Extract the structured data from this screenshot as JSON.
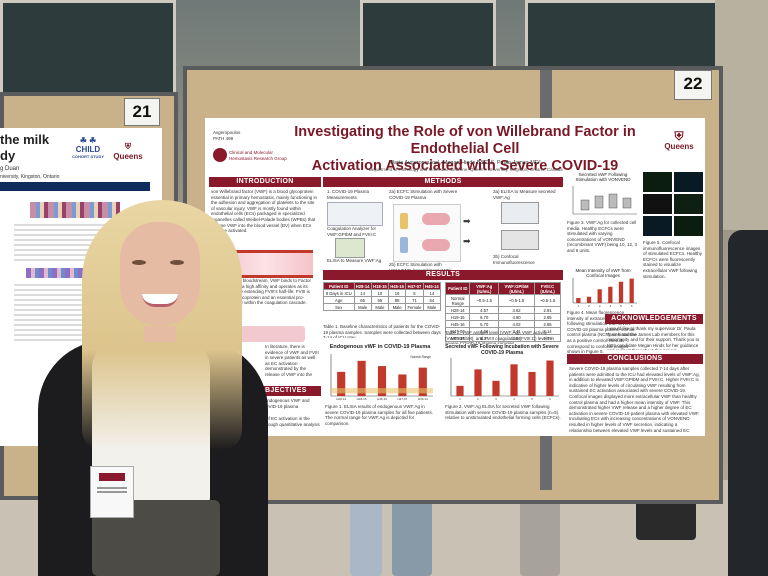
{
  "booth_numbers": {
    "left": "21",
    "right": "22"
  },
  "left_poster": {
    "fragments": [
      "the milk",
      "dy"
    ],
    "author_fragment": "g Duan",
    "affiliation_fragment": "niversity, Kingston, Ontario",
    "logo_child": "CHILD",
    "logo_child_sub": "COHORT STUDY",
    "logo_queens": "Queens"
  },
  "poster": {
    "tag_line1": "Avgeropoulos",
    "tag_line2": "PATH 499",
    "lab_name_1": "Clinical and Molecular",
    "lab_name_2": "Hemostasis Research Group",
    "title_line1": "Investigating the Role of von Willebrand Factor in Endothelial Cell",
    "title_line2": "Activation Associated with Severe COVID-19",
    "authors": "Maria Avgeropoulos¹, Megan Hinds BSCH², Paula James MD²",
    "affiliation": "¹Department of Pathology and Molecular Medicine, Queen's University, Kingston, Ontario, Canada",
    "queens_logo": "Queens",
    "sections": {
      "introduction": "INTRODUCTION",
      "methods": "METHODS",
      "results": "RESULTS",
      "objectives": "OBJECTIVES",
      "acknowledgements": "ACKNOWLEDGEMENTS",
      "conclusions": "CONCLUSIONS"
    },
    "intro_text": "von Willebrand factor (VWF) is a blood glycoprotein essential in primary hemostasis, mainly functioning in the adhesion and aggregation of platelets to the site of vascular injury. VWF is mostly found within endothelial cells (ECs) packaged in specialized organelles called Weibel-Palade bodies (WPBs) that release VWF into the blood vessel (BV) when ECs become activated.",
    "intro_text2": "Throughout the bloodstream, VWF binds to Factor VIII (FVIII) with a high affinity and operates as its carrier molecule extending FVIII's half-life. FVIII is also a blood glycoprotein and an essential pro-coagulant factor within the coagulation cascade.",
    "intro_text3": "In literature, there is evidence of VWF and FVIII in severe patients as well as EC activation demonstrated by the release of VWF into the",
    "objectives_text": "levels of endogenous VWF and severe COVID-19 plasma",
    "objectives_text2": "e degree of EC activation in the plasma through quantitative analysis",
    "methods_steps": [
      "1. COVID-19 Plasma Measurements",
      "2a) ECFC Stimulation with Severe COVID-19 Plasma",
      "3a) ELISA to Measure secreted VWF:Ag",
      "Coagulation Analyzer for VWF:GPIbM and FVIII:C",
      "ELISA to Measure VWF:Ag",
      "2b) ECFC Stimulation with VONVEND (recombinant vWF)",
      "3b) Confocal Immunofluorescence"
    ],
    "table1_headers": [
      "Patient ID",
      "H28-14",
      "H18-15",
      "H45-16",
      "H47-07",
      "H45-14"
    ],
    "table1_rows": [
      [
        "8 Days in ICU",
        "14",
        "10",
        "16",
        "5",
        "14"
      ],
      [
        "Age",
        "65",
        "55",
        "88",
        "71",
        "54"
      ],
      [
        "Sex",
        "Male",
        "Male",
        "Male",
        "Female",
        "Male"
      ]
    ],
    "table1_caption": "Table 1. Baseline characteristics of patients for the COVID-19 plasma samples. Samples were collected between days 7-14 of ICU stay.",
    "table2_headers": [
      "Patient ID",
      "VWF:Ag (IU/mL)",
      "VWF:GPIbM (IU/mL)",
      "FVIII:C (IU/mL)"
    ],
    "table2_rows": [
      [
        "Normal Range",
        "~0.5-1.5",
        "~0.5-1.5",
        "~0.5-1.5"
      ],
      [
        "H28-14",
        "4.57",
        "3.62",
        "2.91"
      ],
      [
        "H18-15",
        "6.70",
        "4.90",
        "2.65"
      ],
      [
        "H45-16",
        "5.70",
        "4.02",
        "2.85"
      ],
      [
        "H47-07",
        "4.06",
        "3.41",
        "2.14"
      ],
      [
        "H45-14",
        "5.37",
        "3.56",
        "2.79"
      ]
    ],
    "table2_caption": "Table 2. VWF antigen level (VWF:Ag), VWF activity (VWF:GPIbM), and FVIII coagulation (FVIII:C) levels in severe COVID-19 plasma samples.",
    "chart1_title": "Endogenous vWF in COVID-19 Plasma",
    "chart1_legend": "Normal Range",
    "chart1_caption": "Figure 1. ELISA results of endogenous VWF:Ag in severe COVID-19 plasma samples for all five patients. The normal range for VWF:Ag is depicted for comparison.",
    "chart2_title": "Secreted vWF Following Incubation with Severe COVID-19 Plasma",
    "chart2_xlabel": "Patient ID",
    "chart2_caption": "Figure 2. VWF:Ag ELISA for secreted VWF following stimulation with severe COVID-19 plasma samples (n=5) relative to unstimulated endothelial forming cells (ECFCs).",
    "right_fig_title": "Secreted vWF Following Stimulation with VONVEND",
    "right_fig_caption": "Figure 3. VWF:Ag for collected cell media. Healthy ECFCs were stimulated with varying concentrations of VONVEND (recombinant VWF) being 10, 12, 3 and 6 units.",
    "right_fig2_title": "Mean Intensity of vWF from Confocal Images",
    "right_fig2_caption": "Figure 4. Mean fluorescence intensity of extracellular VWF following stimulation with severe COVID-19 plasma patient, normal control plasma (NCP), or histamine as a positive control. Results correspond to confocal images shown in Figure 5.",
    "confocal_caption": "Figure 5. Confocal immunofluorescence images of stimulated ECFCs. Healthy ECFCs were fluorescently stained to visualize extracellular VWF following stimulation.",
    "ack_text": "I would like to thank my supervisor Dr. Paula James and the James Lab members for this opportunity and for their support. Thank you to MSc candidate Megan Hinds for her guidance and support throughout this project.",
    "conclusions_text": "Severe COVID-19 plasma samples collected 7-14 days after patients were admitted to the ICU had elevated levels of VWF:Ag, in addition to elevated VWF:GPIbM and FVIII:C. Higher FVIII:C is indicative of higher levels of circulating VWF resulting from sustained EC activation associated with severe COVID-19. Confocal images displayed more extracellular VWF than healthy control plasma and had a higher mean intensity of VWF. This demonstrated higher VWF release and a higher degree of EC activation in severe COVID-19 patient plasma with elevated VWF. Incubating ECs with increasing concentrations of VONVEND resulted in higher levels of VWF secretion, indicating a relationship between elevated VWF levels and sustained EC activation."
  },
  "chart_data": [
    {
      "type": "bar",
      "title": "Endogenous vWF in COVID-19 Plasma",
      "categories": [
        "H28-14",
        "H18-15",
        "H45-16",
        "H47-07",
        "H45-14"
      ],
      "values": [
        4.6,
        6.7,
        5.7,
        4.1,
        5.4
      ],
      "legend": "Normal Range",
      "ylim": [
        0,
        8
      ]
    },
    {
      "type": "bar",
      "title": "Secreted vWF Following Incubation with Severe COVID-19 Plasma",
      "categories": [
        "1",
        "2",
        "3",
        "4",
        "5",
        "6"
      ],
      "values": [
        1.6,
        4.2,
        2.4,
        5.0,
        3.8,
        5.6
      ],
      "xlabel": "Patient ID",
      "ylim": [
        0,
        6
      ]
    },
    {
      "type": "bar",
      "title": "Mean Intensity of vWF from Confocal Images",
      "categories": [
        "1",
        "2",
        "3",
        "4",
        "5",
        "6"
      ],
      "values": [
        0.8,
        1.0,
        2.2,
        2.6,
        3.4,
        3.9
      ],
      "ylim": [
        0,
        4
      ]
    }
  ]
}
